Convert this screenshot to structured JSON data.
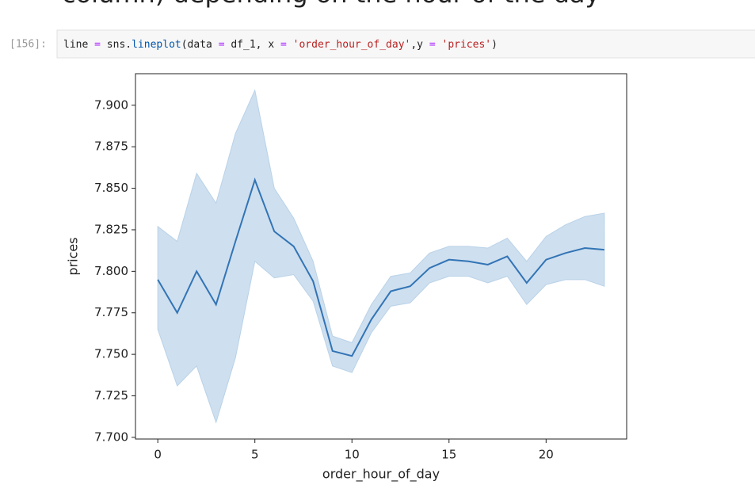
{
  "heading": "column) depending on the hour of the day",
  "prompt": "[156]:",
  "code_tokens": [
    {
      "text": "line",
      "color": "#212121"
    },
    {
      "text": " ",
      "color": "#212121"
    },
    {
      "text": "=",
      "color": "#aa22ff"
    },
    {
      "text": " sns.",
      "color": "#212121"
    },
    {
      "text": "lineplot",
      "color": "#0055aa"
    },
    {
      "text": "(data ",
      "color": "#212121"
    },
    {
      "text": "=",
      "color": "#aa22ff"
    },
    {
      "text": " df_1, x ",
      "color": "#212121"
    },
    {
      "text": "=",
      "color": "#aa22ff"
    },
    {
      "text": " ",
      "color": "#212121"
    },
    {
      "text": "'order_hour_of_day'",
      "color": "#ba2121"
    },
    {
      "text": ",y ",
      "color": "#212121"
    },
    {
      "text": "=",
      "color": "#aa22ff"
    },
    {
      "text": " ",
      "color": "#212121"
    },
    {
      "text": "'prices'",
      "color": "#ba2121"
    },
    {
      "text": ")",
      "color": "#212121"
    }
  ],
  "chart_data": {
    "type": "line",
    "x_label": "order_hour_of_day",
    "y_label": "prices",
    "x": [
      0,
      1,
      2,
      3,
      4,
      5,
      6,
      7,
      8,
      9,
      10,
      11,
      12,
      13,
      14,
      15,
      16,
      17,
      18,
      19,
      20,
      21,
      22,
      23
    ],
    "values": [
      7.795,
      7.775,
      7.8,
      7.78,
      7.818,
      7.855,
      7.824,
      7.815,
      7.794,
      7.752,
      7.749,
      7.771,
      7.788,
      7.791,
      7.802,
      7.807,
      7.806,
      7.804,
      7.809,
      7.793,
      7.807,
      7.811,
      7.814,
      7.813
    ],
    "ci_upper": [
      7.827,
      7.818,
      7.859,
      7.841,
      7.883,
      7.909,
      7.85,
      7.832,
      7.806,
      7.761,
      7.757,
      7.78,
      7.797,
      7.799,
      7.811,
      7.815,
      7.815,
      7.814,
      7.82,
      7.806,
      7.821,
      7.828,
      7.833,
      7.835
    ],
    "ci_lower": [
      7.765,
      7.731,
      7.743,
      7.709,
      7.748,
      7.806,
      7.796,
      7.798,
      7.782,
      7.743,
      7.739,
      7.763,
      7.779,
      7.781,
      7.793,
      7.797,
      7.797,
      7.793,
      7.797,
      7.78,
      7.792,
      7.795,
      7.795,
      7.791
    ],
    "color": "#3274b5",
    "band_color": "#b9d2e8",
    "xlim": [
      -1.15,
      24.15
    ],
    "ylim": [
      7.699,
      7.919
    ],
    "xticks": [
      0,
      5,
      10,
      15,
      20
    ],
    "yticks": [
      {
        "value": 7.7,
        "label": "7.700"
      },
      {
        "value": 7.725,
        "label": "7.725"
      },
      {
        "value": 7.75,
        "label": "7.750"
      },
      {
        "value": 7.775,
        "label": "7.775"
      },
      {
        "value": 7.8,
        "label": "7.800"
      },
      {
        "value": 7.825,
        "label": "7.825"
      },
      {
        "value": 7.85,
        "label": "7.850"
      },
      {
        "value": 7.875,
        "label": "7.875"
      },
      {
        "value": 7.9,
        "label": "7.900"
      }
    ]
  }
}
